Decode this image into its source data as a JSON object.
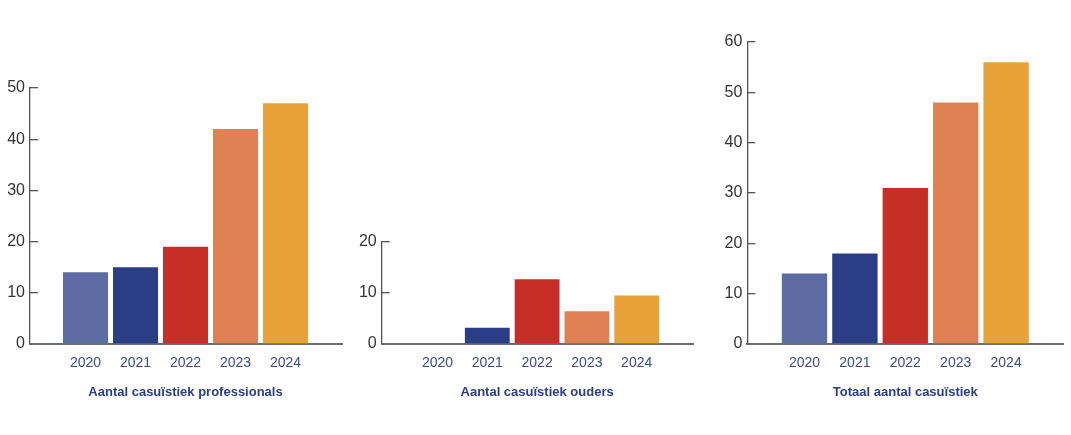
{
  "chart_data": [
    {
      "type": "bar",
      "title": "Aantal casuïstiek professionals",
      "categories": [
        "2020",
        "2021",
        "2022",
        "2023",
        "2024"
      ],
      "values": [
        14,
        15,
        19,
        42,
        47
      ],
      "colors": [
        "#5f6ca3",
        "#2b3d87",
        "#c62f28",
        "#e08153",
        "#e8a23a"
      ],
      "ylim": [
        0,
        50
      ],
      "yticks": [
        0,
        10,
        20,
        30,
        40,
        50
      ]
    },
    {
      "type": "bar",
      "title": "Aantal casuïstiek ouders",
      "categories": [
        "2020",
        "2021",
        "2022",
        "2023",
        "2024"
      ],
      "values": [
        0,
        3.2,
        12.7,
        6.4,
        9.5
      ],
      "colors": [
        "#5f6ca3",
        "#2b3d87",
        "#c62f28",
        "#e08153",
        "#e8a23a"
      ],
      "ylim": [
        0,
        20
      ],
      "yticks": [
        0,
        10,
        20
      ]
    },
    {
      "type": "bar",
      "title": "Totaal aantal casuïstiek",
      "categories": [
        "2020",
        "2021",
        "2022",
        "2023",
        "2024"
      ],
      "values": [
        14,
        18,
        31,
        48,
        56
      ],
      "colors": [
        "#5f6ca3",
        "#2b3d87",
        "#c62f28",
        "#e08153",
        "#e8a23a"
      ],
      "ylim": [
        0,
        60
      ],
      "yticks": [
        0,
        10,
        20,
        30,
        40,
        50,
        60
      ]
    }
  ]
}
